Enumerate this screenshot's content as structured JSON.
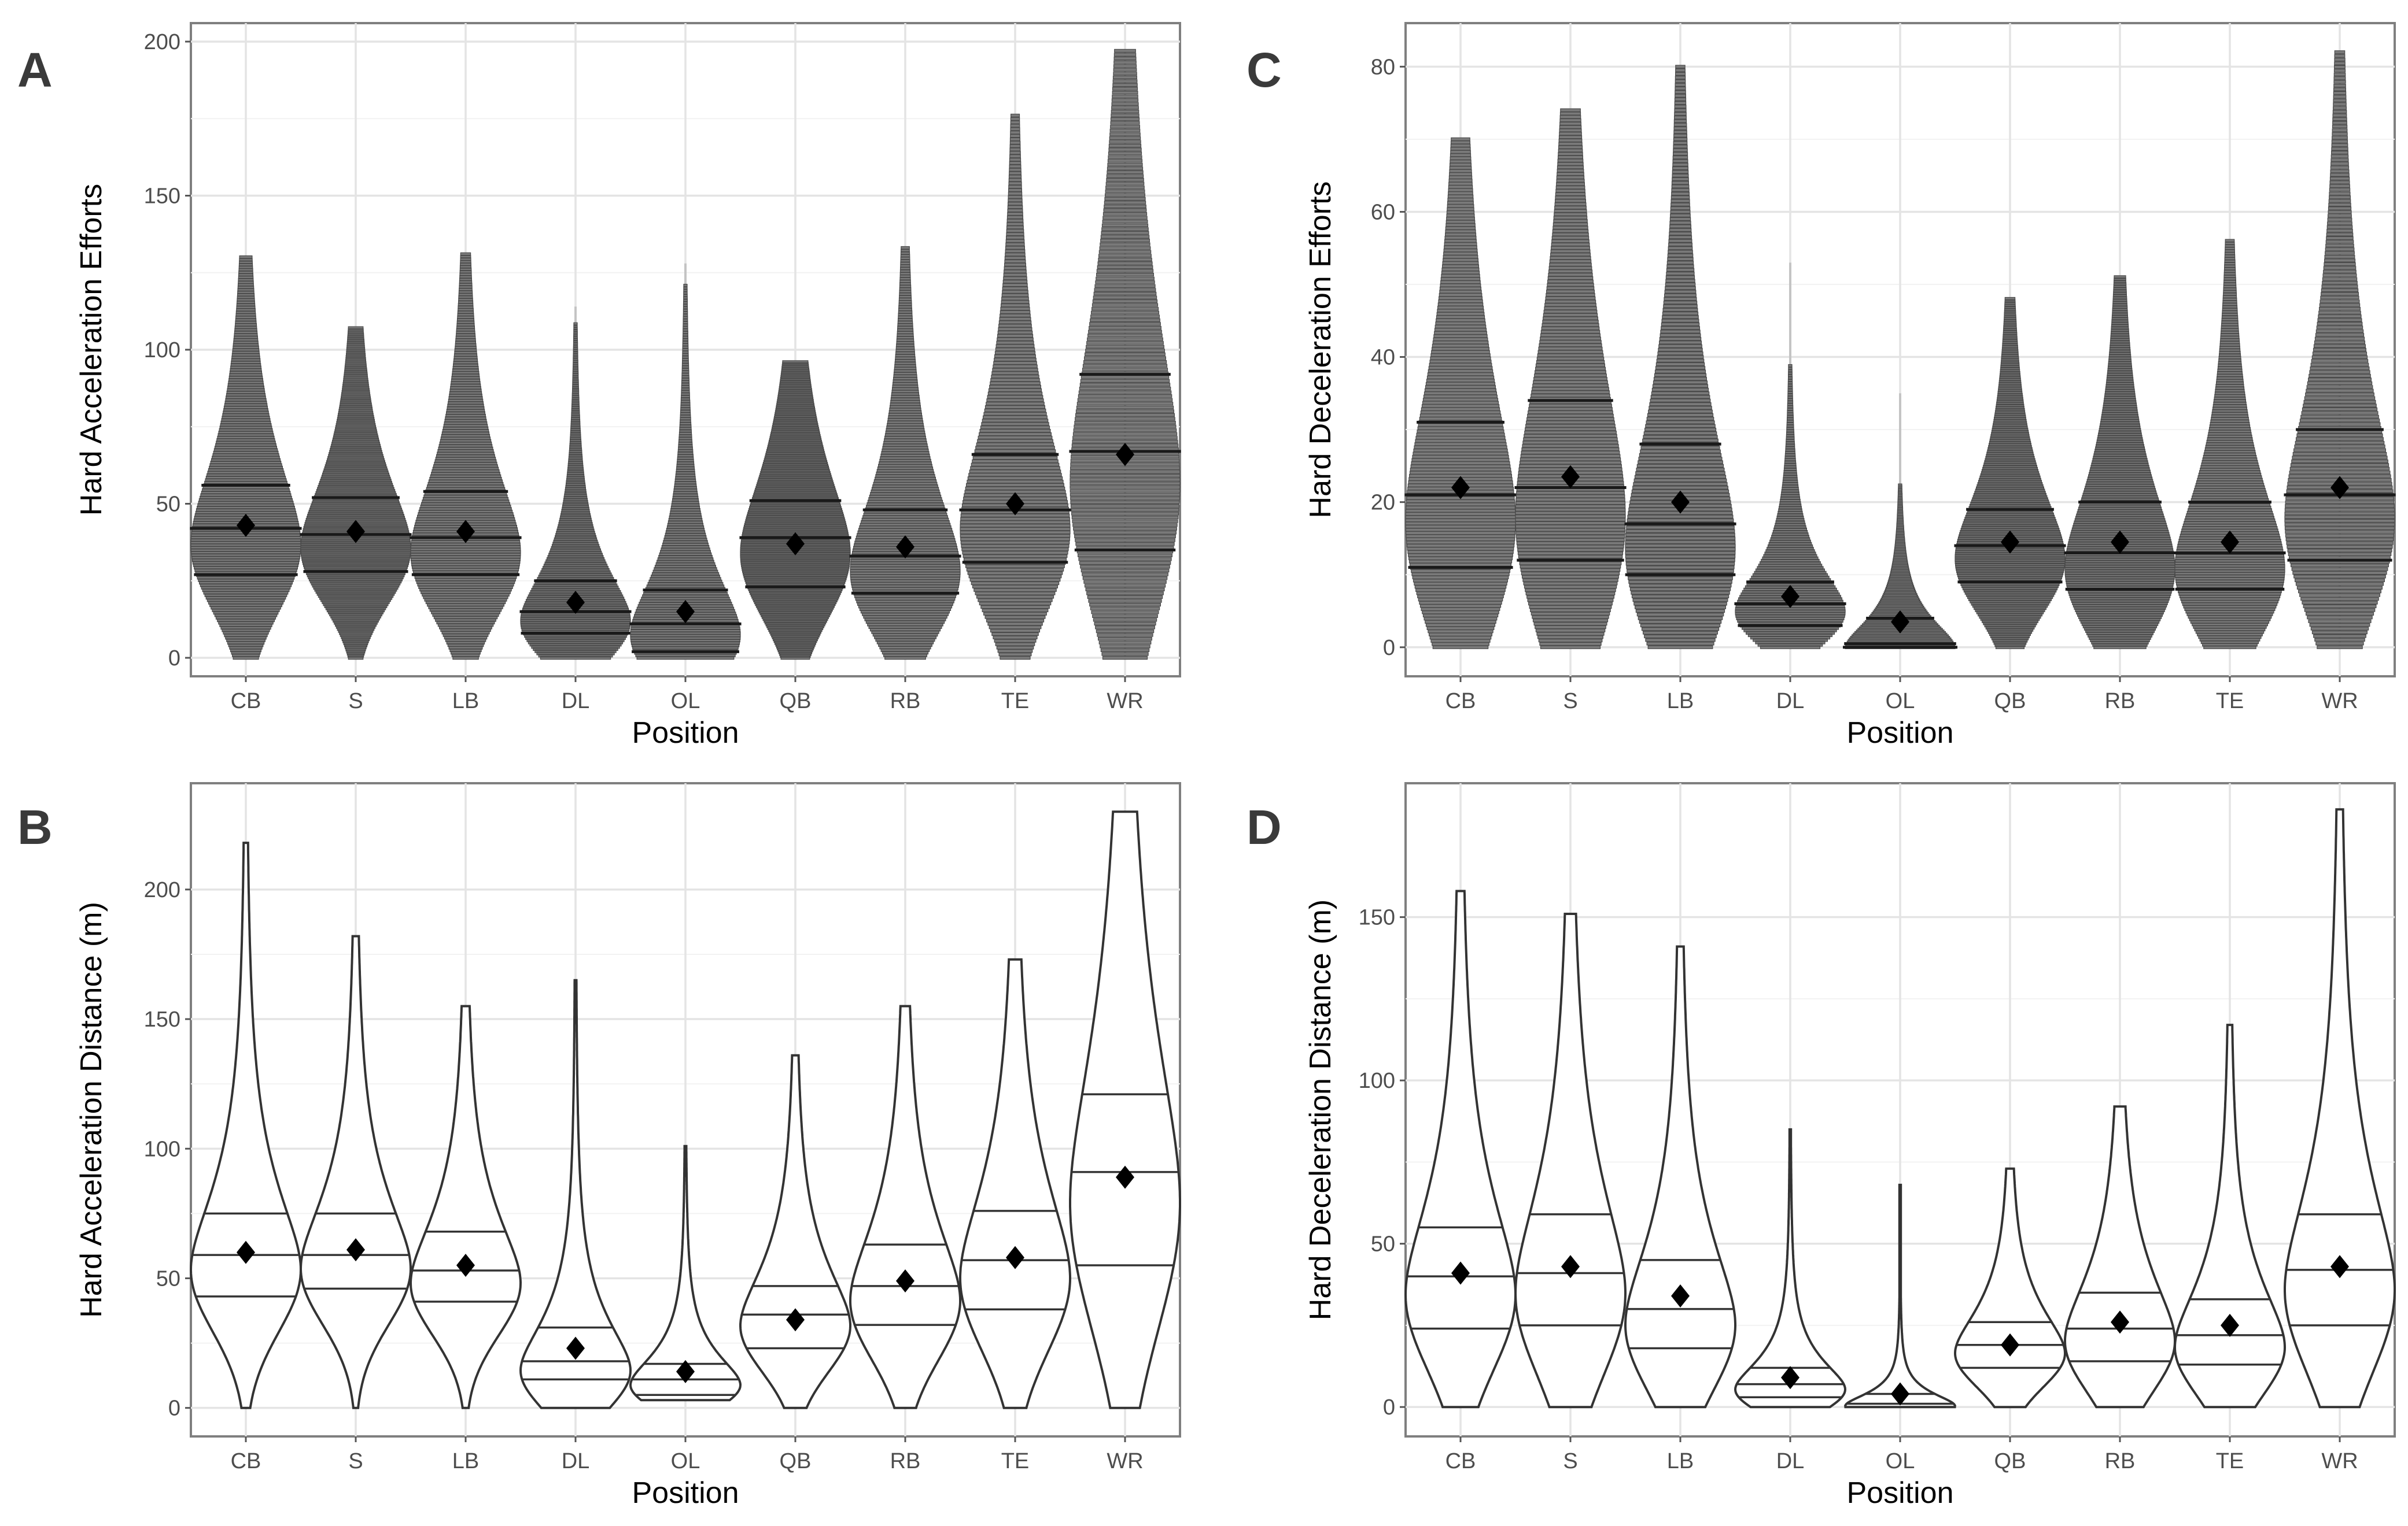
{
  "chart_data": [
    {
      "panel": "A",
      "type": "violin-dotplot",
      "ylabel": "Hard Acceleration Efforts",
      "xlabel": "Position",
      "categories": [
        "CB",
        "S",
        "LB",
        "DL",
        "OL",
        "QB",
        "RB",
        "TE",
        "WR"
      ],
      "ylim": [
        -6,
        206
      ],
      "yticks": [
        0,
        50,
        100,
        150,
        200
      ],
      "series": [
        {
          "name": "CB",
          "min": 0,
          "max": 130,
          "q1": 27,
          "median": 42,
          "q3": 56,
          "mean": 43
        },
        {
          "name": "S",
          "min": 0,
          "max": 107,
          "q1": 28,
          "median": 40,
          "q3": 52,
          "mean": 41
        },
        {
          "name": "LB",
          "min": 0,
          "max": 131,
          "q1": 27,
          "median": 39,
          "q3": 54,
          "mean": 41
        },
        {
          "name": "DL",
          "min": 0,
          "max": 114,
          "q1": 8,
          "median": 15,
          "q3": 25,
          "mean": 18
        },
        {
          "name": "OL",
          "min": 0,
          "max": 128,
          "q1": 2,
          "median": 11,
          "q3": 22,
          "mean": 15
        },
        {
          "name": "QB",
          "min": 0,
          "max": 96,
          "q1": 23,
          "median": 39,
          "q3": 51,
          "mean": 37
        },
        {
          "name": "RB",
          "min": 0,
          "max": 133,
          "q1": 21,
          "median": 33,
          "q3": 48,
          "mean": 36
        },
        {
          "name": "TE",
          "min": 0,
          "max": 176,
          "q1": 31,
          "median": 48,
          "q3": 66,
          "mean": 50
        },
        {
          "name": "WR",
          "min": 0,
          "max": 197,
          "q1": 35,
          "median": 67,
          "q3": 92,
          "mean": 66
        }
      ]
    },
    {
      "panel": "B",
      "type": "violin",
      "ylabel": "Hard Acceleration Distance (m)",
      "xlabel": "Position",
      "categories": [
        "CB",
        "S",
        "LB",
        "DL",
        "OL",
        "QB",
        "RB",
        "TE",
        "WR"
      ],
      "ylim": [
        -11,
        241
      ],
      "yticks": [
        0,
        50,
        100,
        150,
        200
      ],
      "series": [
        {
          "name": "CB",
          "min": 0,
          "max": 218,
          "q1": 43,
          "median": 59,
          "q3": 75,
          "mean": 60
        },
        {
          "name": "S",
          "min": 0,
          "max": 182,
          "q1": 46,
          "median": 59,
          "q3": 75,
          "mean": 61
        },
        {
          "name": "LB",
          "min": 0,
          "max": 155,
          "q1": 41,
          "median": 53,
          "q3": 68,
          "mean": 55
        },
        {
          "name": "DL",
          "min": 0,
          "max": 165,
          "q1": 11,
          "median": 18,
          "q3": 31,
          "mean": 23
        },
        {
          "name": "OL",
          "min": 3,
          "max": 101,
          "q1": 5,
          "median": 11,
          "q3": 17,
          "mean": 14
        },
        {
          "name": "QB",
          "min": 0,
          "max": 136,
          "q1": 23,
          "median": 36,
          "q3": 47,
          "mean": 34
        },
        {
          "name": "RB",
          "min": 0,
          "max": 155,
          "q1": 32,
          "median": 47,
          "q3": 63,
          "mean": 49
        },
        {
          "name": "TE",
          "min": 0,
          "max": 173,
          "q1": 38,
          "median": 57,
          "q3": 76,
          "mean": 58
        },
        {
          "name": "WR",
          "min": 0,
          "max": 230,
          "q1": 55,
          "median": 91,
          "q3": 121,
          "mean": 89
        }
      ]
    },
    {
      "panel": "C",
      "type": "violin-dotplot",
      "ylabel": "Hard Deceleration Efforts",
      "xlabel": "Position",
      "categories": [
        "CB",
        "S",
        "LB",
        "DL",
        "OL",
        "QB",
        "RB",
        "TE",
        "WR"
      ],
      "ylim": [
        -4,
        86
      ],
      "yticks": [
        0,
        20,
        40,
        60,
        80
      ],
      "series": [
        {
          "name": "CB",
          "min": 0,
          "max": 70,
          "q1": 11,
          "median": 21,
          "q3": 31,
          "mean": 22
        },
        {
          "name": "S",
          "min": 0,
          "max": 74,
          "q1": 12,
          "median": 22,
          "q3": 34,
          "mean": 23.5
        },
        {
          "name": "LB",
          "min": 0,
          "max": 80,
          "q1": 10,
          "median": 17,
          "q3": 28,
          "mean": 20
        },
        {
          "name": "DL",
          "min": 0,
          "max": 53,
          "q1": 3,
          "median": 6,
          "q3": 9,
          "mean": 7
        },
        {
          "name": "OL",
          "min": 0,
          "max": 35,
          "q1": 0,
          "median": 0.5,
          "q3": 4,
          "mean": 3.5
        },
        {
          "name": "QB",
          "min": 0,
          "max": 48,
          "q1": 9,
          "median": 14,
          "q3": 19,
          "mean": 14.5
        },
        {
          "name": "RB",
          "min": 0,
          "max": 51,
          "q1": 8,
          "median": 13,
          "q3": 20,
          "mean": 14.5
        },
        {
          "name": "TE",
          "min": 0,
          "max": 56,
          "q1": 8,
          "median": 13,
          "q3": 20,
          "mean": 14.5
        },
        {
          "name": "WR",
          "min": 0,
          "max": 82,
          "q1": 12,
          "median": 21,
          "q3": 30,
          "mean": 22
        }
      ]
    },
    {
      "panel": "D",
      "type": "violin",
      "ylabel": "Hard Deceleration Distance (m)",
      "xlabel": "Position",
      "categories": [
        "CB",
        "S",
        "LB",
        "DL",
        "OL",
        "QB",
        "RB",
        "TE",
        "WR"
      ],
      "ylim": [
        -9,
        191
      ],
      "yticks": [
        0,
        50,
        100,
        150
      ],
      "series": [
        {
          "name": "CB",
          "min": 0,
          "max": 158,
          "q1": 24,
          "median": 40,
          "q3": 55,
          "mean": 41
        },
        {
          "name": "S",
          "min": 0,
          "max": 151,
          "q1": 25,
          "median": 41,
          "q3": 59,
          "mean": 43
        },
        {
          "name": "LB",
          "min": 0,
          "max": 141,
          "q1": 18,
          "median": 30,
          "q3": 45,
          "mean": 34
        },
        {
          "name": "DL",
          "min": 0,
          "max": 85,
          "q1": 3,
          "median": 7,
          "q3": 12,
          "mean": 9
        },
        {
          "name": "OL",
          "min": 0,
          "max": 68,
          "q1": 0,
          "median": 1,
          "q3": 4,
          "mean": 4
        },
        {
          "name": "QB",
          "min": 0,
          "max": 73,
          "q1": 12,
          "median": 19,
          "q3": 26,
          "mean": 19
        },
        {
          "name": "RB",
          "min": 0,
          "max": 92,
          "q1": 14,
          "median": 24,
          "q3": 35,
          "mean": 26
        },
        {
          "name": "TE",
          "min": 0,
          "max": 117,
          "q1": 13,
          "median": 22,
          "q3": 33,
          "mean": 25
        },
        {
          "name": "WR",
          "min": 0,
          "max": 183,
          "q1": 25,
          "median": 42,
          "q3": 59,
          "mean": 43
        }
      ]
    }
  ]
}
